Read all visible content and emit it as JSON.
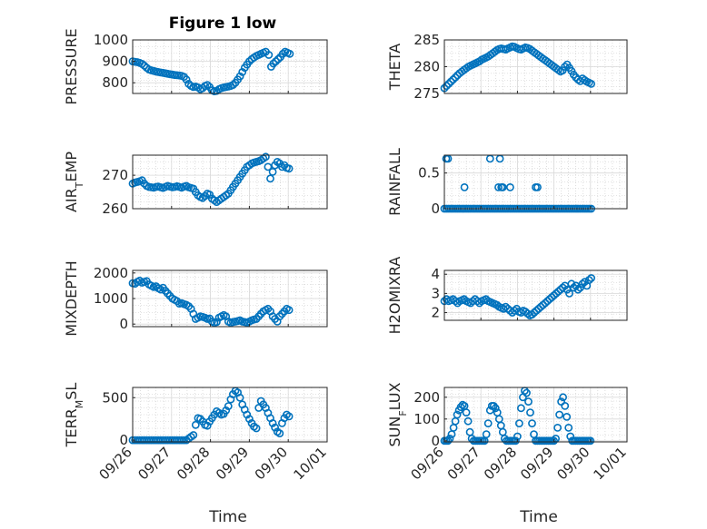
{
  "figure": {
    "title": "Figure 1 low",
    "xlabel": "Time",
    "marker_color": "#0072BD",
    "x_ticks": [
      "09/26",
      "09/27",
      "09/28",
      "09/29",
      "09/30",
      "10/01"
    ]
  },
  "chart_data": [
    {
      "type": "scatter",
      "ylabel": "PRESSURE",
      "ylabel_sub": null,
      "xlim": [
        0,
        5
      ],
      "ylim": [
        750,
        1000
      ],
      "yticks": [
        800,
        900,
        1000
      ],
      "grid": true,
      "x": [
        0.0,
        0.06,
        0.12,
        0.18,
        0.24,
        0.3,
        0.36,
        0.42,
        0.48,
        0.54,
        0.6,
        0.66,
        0.72,
        0.78,
        0.84,
        0.9,
        0.96,
        1.02,
        1.08,
        1.14,
        1.2,
        1.26,
        1.32,
        1.38,
        1.44,
        1.5,
        1.56,
        1.62,
        1.68,
        1.74,
        1.8,
        1.86,
        1.92,
        1.98,
        2.04,
        2.1,
        2.16,
        2.22,
        2.28,
        2.34,
        2.4,
        2.46,
        2.52,
        2.58,
        2.64,
        2.7,
        2.76,
        2.82,
        2.88,
        2.94,
        3.0,
        3.06,
        3.12,
        3.18,
        3.24,
        3.3,
        3.36,
        3.42,
        3.5,
        3.56,
        3.62,
        3.68,
        3.74,
        3.8,
        3.86,
        3.92,
        3.98,
        4.04
      ],
      "y": [
        900,
        898,
        896,
        893,
        888,
        880,
        870,
        862,
        858,
        855,
        852,
        850,
        848,
        846,
        844,
        842,
        840,
        838,
        836,
        835,
        834,
        832,
        828,
        815,
        795,
        785,
        780,
        782,
        778,
        770,
        775,
        785,
        790,
        780,
        765,
        760,
        762,
        770,
        775,
        778,
        780,
        782,
        785,
        790,
        800,
        815,
        830,
        850,
        870,
        885,
        900,
        910,
        918,
        925,
        930,
        935,
        940,
        945,
        930,
        875,
        890,
        900,
        910,
        920,
        935,
        945,
        940,
        935
      ],
      "series": []
    },
    {
      "type": "scatter",
      "ylabel": "THETA",
      "ylabel_sub": null,
      "xlim": [
        0,
        5
      ],
      "ylim": [
        275,
        285
      ],
      "yticks": [
        275,
        280,
        285
      ],
      "grid": true,
      "x": [
        0.0,
        0.06,
        0.12,
        0.18,
        0.24,
        0.3,
        0.36,
        0.42,
        0.48,
        0.54,
        0.6,
        0.66,
        0.72,
        0.78,
        0.84,
        0.9,
        0.96,
        1.02,
        1.08,
        1.14,
        1.2,
        1.26,
        1.32,
        1.38,
        1.44,
        1.5,
        1.56,
        1.62,
        1.68,
        1.74,
        1.8,
        1.86,
        1.92,
        1.98,
        2.04,
        2.1,
        2.16,
        2.22,
        2.28,
        2.34,
        2.4,
        2.46,
        2.52,
        2.58,
        2.64,
        2.7,
        2.76,
        2.82,
        2.88,
        2.94,
        3.0,
        3.06,
        3.12,
        3.18,
        3.24,
        3.3,
        3.36,
        3.42,
        3.48,
        3.54,
        3.6,
        3.66,
        3.72,
        3.78,
        3.84,
        3.9,
        3.96,
        4.02
      ],
      "y": [
        276.0,
        276.4,
        276.8,
        277.2,
        277.6,
        278.0,
        278.4,
        278.8,
        279.1,
        279.4,
        279.7,
        280.0,
        280.2,
        280.4,
        280.6,
        280.8,
        281.0,
        281.3,
        281.5,
        281.7,
        281.9,
        282.2,
        282.5,
        282.8,
        283.1,
        283.3,
        283.4,
        283.3,
        283.2,
        283.4,
        283.6,
        283.8,
        283.7,
        283.5,
        283.3,
        283.2,
        283.4,
        283.6,
        283.5,
        283.3,
        283.0,
        282.7,
        282.4,
        282.1,
        281.8,
        281.5,
        281.2,
        280.9,
        280.6,
        280.3,
        280.0,
        279.7,
        279.4,
        279.1,
        279.3,
        280.0,
        280.4,
        279.8,
        279.2,
        278.5,
        278.0,
        277.6,
        277.3,
        277.8,
        277.5,
        277.2,
        277.0,
        276.8
      ],
      "series": []
    },
    {
      "type": "scatter",
      "ylabel": "AIR",
      "ylabel_sub": "T",
      "ylabel_rest": "EMP",
      "xlim": [
        0,
        5
      ],
      "ylim": [
        260,
        276
      ],
      "yticks": [
        260,
        270
      ],
      "grid": true,
      "x": [
        0.0,
        0.06,
        0.12,
        0.18,
        0.24,
        0.3,
        0.36,
        0.42,
        0.48,
        0.54,
        0.6,
        0.66,
        0.72,
        0.78,
        0.84,
        0.9,
        0.96,
        1.02,
        1.08,
        1.14,
        1.2,
        1.26,
        1.32,
        1.38,
        1.44,
        1.5,
        1.56,
        1.62,
        1.68,
        1.74,
        1.8,
        1.86,
        1.92,
        1.98,
        2.04,
        2.1,
        2.16,
        2.22,
        2.28,
        2.34,
        2.4,
        2.46,
        2.52,
        2.58,
        2.64,
        2.7,
        2.76,
        2.82,
        2.88,
        2.94,
        3.0,
        3.06,
        3.12,
        3.18,
        3.24,
        3.3,
        3.36,
        3.42,
        3.48,
        3.54,
        3.6,
        3.66,
        3.72,
        3.78,
        3.84,
        3.9,
        3.96,
        4.02
      ],
      "y": [
        267.5,
        267.8,
        268.0,
        268.2,
        268.5,
        267.5,
        266.8,
        266.5,
        266.4,
        266.3,
        266.5,
        266.6,
        266.4,
        266.2,
        266.5,
        266.8,
        266.6,
        266.4,
        266.5,
        266.7,
        266.5,
        266.3,
        266.6,
        266.8,
        266.4,
        266.2,
        266.0,
        265.0,
        264.0,
        263.5,
        263.2,
        263.8,
        264.5,
        264.2,
        263.0,
        262.5,
        262.0,
        262.5,
        263.0,
        263.5,
        264.0,
        264.5,
        265.5,
        266.5,
        267.5,
        268.5,
        269.5,
        270.5,
        271.5,
        272.5,
        273.0,
        273.5,
        273.8,
        274.0,
        274.2,
        274.5,
        275.0,
        275.5,
        272.5,
        269.0,
        271.0,
        273.0,
        274.0,
        273.5,
        272.5,
        273.0,
        272.2,
        272.0
      ],
      "series": []
    },
    {
      "type": "scatter",
      "ylabel": "RAINFALL",
      "ylabel_sub": null,
      "xlim": [
        0,
        5
      ],
      "ylim": [
        0,
        0.75
      ],
      "yticks": [
        0,
        0.5
      ],
      "grid": true,
      "x": [
        0.0,
        0.06,
        0.12,
        0.18,
        0.24,
        0.3,
        0.36,
        0.42,
        0.48,
        0.54,
        0.6,
        0.66,
        0.72,
        0.78,
        0.84,
        0.9,
        0.96,
        1.02,
        1.08,
        1.14,
        1.2,
        1.26,
        1.32,
        1.38,
        1.44,
        1.5,
        1.56,
        1.62,
        1.68,
        1.74,
        1.8,
        1.86,
        1.92,
        1.98,
        2.04,
        2.1,
        2.16,
        2.22,
        2.28,
        2.34,
        2.4,
        2.46,
        2.52,
        2.58,
        2.64,
        2.7,
        2.76,
        2.82,
        2.88,
        2.94,
        3.0,
        3.06,
        3.12,
        3.18,
        3.24,
        3.3,
        3.36,
        3.42,
        3.48,
        3.54,
        3.6,
        3.66,
        3.72,
        3.78,
        3.84,
        3.9,
        3.96,
        4.02,
        0.05,
        0.1,
        0.55,
        1.25,
        1.48,
        1.52,
        1.56,
        1.6,
        1.8,
        2.5,
        2.55
      ],
      "y": [
        0,
        0,
        0,
        0,
        0,
        0,
        0,
        0,
        0,
        0,
        0,
        0,
        0,
        0,
        0,
        0,
        0,
        0,
        0,
        0,
        0,
        0,
        0,
        0,
        0,
        0,
        0,
        0,
        0,
        0,
        0,
        0,
        0,
        0,
        0,
        0,
        0,
        0,
        0,
        0,
        0,
        0,
        0,
        0,
        0,
        0,
        0,
        0,
        0,
        0,
        0,
        0,
        0,
        0,
        0,
        0,
        0,
        0,
        0,
        0,
        0,
        0,
        0,
        0,
        0,
        0,
        0,
        0,
        0.7,
        0.7,
        0.3,
        0.7,
        0.3,
        0.7,
        0.3,
        0.3,
        0.3,
        0.3,
        0.3
      ],
      "series": []
    },
    {
      "type": "scatter",
      "ylabel": "MIXDEPTH",
      "ylabel_sub": null,
      "xlim": [
        0,
        5
      ],
      "ylim": [
        -100,
        2100
      ],
      "yticks": [
        0,
        1000,
        2000
      ],
      "grid": true,
      "x": [
        0.0,
        0.06,
        0.12,
        0.18,
        0.24,
        0.3,
        0.36,
        0.42,
        0.48,
        0.54,
        0.6,
        0.66,
        0.72,
        0.78,
        0.84,
        0.9,
        0.96,
        1.02,
        1.08,
        1.14,
        1.2,
        1.26,
        1.32,
        1.38,
        1.44,
        1.5,
        1.56,
        1.62,
        1.68,
        1.74,
        1.8,
        1.86,
        1.92,
        1.98,
        2.04,
        2.1,
        2.16,
        2.22,
        2.28,
        2.34,
        2.4,
        2.46,
        2.52,
        2.58,
        2.64,
        2.7,
        2.76,
        2.82,
        2.88,
        2.94,
        3.0,
        3.06,
        3.12,
        3.18,
        3.24,
        3.3,
        3.36,
        3.42,
        3.48,
        3.54,
        3.6,
        3.66,
        3.72,
        3.78,
        3.84,
        3.9,
        3.96,
        4.02
      ],
      "y": [
        1600,
        1580,
        1650,
        1700,
        1620,
        1650,
        1680,
        1550,
        1500,
        1450,
        1480,
        1400,
        1350,
        1420,
        1300,
        1200,
        1100,
        1000,
        950,
        900,
        800,
        820,
        780,
        750,
        700,
        600,
        400,
        200,
        250,
        300,
        280,
        250,
        200,
        220,
        100,
        50,
        80,
        250,
        300,
        350,
        300,
        100,
        50,
        80,
        100,
        120,
        150,
        100,
        80,
        60,
        100,
        150,
        180,
        200,
        300,
        400,
        500,
        550,
        600,
        500,
        300,
        200,
        100,
        300,
        400,
        500,
        600,
        550
      ],
      "series": []
    },
    {
      "type": "scatter",
      "ylabel": "H2OMIXRA",
      "ylabel_sub": null,
      "xlim": [
        0,
        5
      ],
      "ylim": [
        1.6,
        4.2
      ],
      "yticks": [
        2,
        3,
        4
      ],
      "grid": true,
      "x": [
        0.0,
        0.06,
        0.12,
        0.18,
        0.24,
        0.3,
        0.36,
        0.42,
        0.48,
        0.54,
        0.6,
        0.66,
        0.72,
        0.78,
        0.84,
        0.9,
        0.96,
        1.02,
        1.08,
        1.14,
        1.2,
        1.26,
        1.32,
        1.38,
        1.44,
        1.5,
        1.56,
        1.62,
        1.68,
        1.74,
        1.8,
        1.86,
        1.92,
        1.98,
        2.04,
        2.1,
        2.16,
        2.22,
        2.28,
        2.34,
        2.4,
        2.46,
        2.52,
        2.58,
        2.64,
        2.7,
        2.76,
        2.82,
        2.88,
        2.94,
        3.0,
        3.06,
        3.12,
        3.18,
        3.24,
        3.3,
        3.36,
        3.42,
        3.48,
        3.54,
        3.6,
        3.66,
        3.72,
        3.78,
        3.84,
        3.9,
        3.96,
        4.02
      ],
      "y": [
        2.6,
        2.7,
        2.6,
        2.65,
        2.7,
        2.6,
        2.5,
        2.6,
        2.65,
        2.7,
        2.6,
        2.55,
        2.5,
        2.6,
        2.7,
        2.6,
        2.5,
        2.6,
        2.65,
        2.7,
        2.6,
        2.55,
        2.5,
        2.45,
        2.4,
        2.3,
        2.25,
        2.2,
        2.3,
        2.2,
        2.1,
        2.0,
        2.1,
        2.2,
        2.05,
        2.0,
        2.1,
        2.05,
        1.95,
        1.85,
        1.9,
        2.0,
        2.1,
        2.2,
        2.3,
        2.4,
        2.5,
        2.6,
        2.7,
        2.8,
        2.9,
        3.0,
        3.1,
        3.2,
        3.3,
        3.4,
        3.2,
        3.0,
        3.5,
        3.3,
        3.4,
        3.2,
        3.3,
        3.5,
        3.6,
        3.4,
        3.7,
        3.8
      ],
      "series": []
    },
    {
      "type": "scatter",
      "ylabel": "TERR",
      "ylabel_sub": "M",
      "ylabel_rest": "SL",
      "xlim": [
        0,
        5
      ],
      "ylim": [
        -20,
        620
      ],
      "yticks": [
        0,
        500
      ],
      "grid": true,
      "x": [
        0.0,
        0.06,
        0.12,
        0.18,
        0.24,
        0.3,
        0.36,
        0.42,
        0.48,
        0.54,
        0.6,
        0.66,
        0.72,
        0.78,
        0.84,
        0.9,
        0.96,
        1.02,
        1.08,
        1.14,
        1.2,
        1.26,
        1.32,
        1.38,
        1.44,
        1.5,
        1.56,
        1.62,
        1.68,
        1.74,
        1.8,
        1.86,
        1.92,
        1.98,
        2.04,
        2.1,
        2.16,
        2.22,
        2.28,
        2.34,
        2.4,
        2.46,
        2.52,
        2.58,
        2.64,
        2.7,
        2.76,
        2.82,
        2.88,
        2.94,
        3.0,
        3.06,
        3.12,
        3.18,
        3.24,
        3.3,
        3.36,
        3.42,
        3.48,
        3.54,
        3.6,
        3.66,
        3.72,
        3.78,
        3.84,
        3.9,
        3.96,
        4.02
      ],
      "y": [
        0,
        0,
        0,
        0,
        0,
        0,
        0,
        0,
        0,
        0,
        0,
        0,
        0,
        0,
        0,
        0,
        0,
        0,
        0,
        0,
        0,
        0,
        0,
        0,
        20,
        40,
        60,
        180,
        260,
        250,
        220,
        180,
        170,
        220,
        260,
        300,
        340,
        320,
        300,
        310,
        350,
        400,
        480,
        540,
        580,
        560,
        500,
        420,
        360,
        300,
        250,
        200,
        160,
        140,
        380,
        460,
        420,
        380,
        320,
        260,
        200,
        150,
        100,
        80,
        200,
        260,
        300,
        280
      ],
      "series": []
    },
    {
      "type": "scatter",
      "ylabel": "SUN",
      "ylabel_sub": "F",
      "ylabel_rest": "LUX",
      "xlim": [
        0,
        5
      ],
      "ylim": [
        -5,
        245
      ],
      "yticks": [
        0,
        100,
        200
      ],
      "grid": true,
      "x": [
        0.0,
        0.05,
        0.1,
        0.15,
        0.2,
        0.25,
        0.3,
        0.35,
        0.4,
        0.45,
        0.5,
        0.55,
        0.6,
        0.65,
        0.7,
        0.75,
        0.8,
        0.85,
        0.9,
        0.95,
        1.0,
        1.05,
        1.1,
        1.15,
        1.2,
        1.25,
        1.3,
        1.35,
        1.4,
        1.45,
        1.5,
        1.55,
        1.6,
        1.65,
        1.7,
        1.75,
        1.8,
        1.85,
        1.9,
        1.95,
        2.0,
        2.05,
        2.1,
        2.15,
        2.2,
        2.25,
        2.3,
        2.35,
        2.4,
        2.45,
        2.5,
        2.55,
        2.6,
        2.65,
        2.7,
        2.75,
        2.8,
        2.85,
        2.9,
        2.95,
        3.0,
        3.05,
        3.1,
        3.15,
        3.2,
        3.25,
        3.3,
        3.35,
        3.4,
        3.45,
        3.5,
        3.55,
        3.6,
        3.65,
        3.7,
        3.75,
        3.8,
        3.85,
        3.9,
        3.95,
        4.0
      ],
      "y": [
        0,
        0,
        0,
        10,
        30,
        60,
        90,
        120,
        140,
        155,
        165,
        160,
        130,
        90,
        40,
        10,
        0,
        0,
        0,
        0,
        0,
        0,
        0,
        30,
        80,
        140,
        160,
        160,
        150,
        130,
        100,
        70,
        40,
        10,
        0,
        0,
        0,
        0,
        0,
        0,
        20,
        80,
        150,
        200,
        230,
        220,
        180,
        130,
        80,
        30,
        0,
        0,
        0,
        0,
        0,
        0,
        0,
        0,
        0,
        0,
        0,
        10,
        60,
        120,
        180,
        200,
        160,
        110,
        60,
        20,
        0,
        0,
        0,
        0,
        0,
        0,
        0,
        0,
        0,
        0,
        0
      ],
      "series": []
    }
  ]
}
